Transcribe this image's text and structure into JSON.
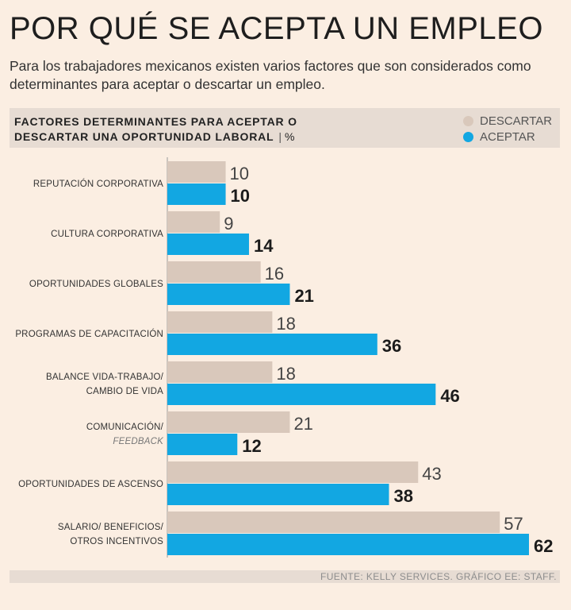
{
  "title": "POR QUÉ SE ACEPTA UN EMPLEO",
  "subtitle": "Para los trabajadores mexicanos existen varios factores que son considerados como determinantes para aceptar o descartar un empleo.",
  "header": {
    "line1": "FACTORES DETERMINANTES PARA ACEPTAR O",
    "line2": "DESCARTAR UNA OPORTUNIDAD LABORAL",
    "unit": "%"
  },
  "footer": "FUENTE: KELLY SERVICES.  GRÁFICO EE: STAFF.",
  "colors": {
    "descartar": "#d9c8bb",
    "aceptar": "#12a7e2",
    "background": "#fbeee2"
  },
  "chart_data": {
    "type": "bar",
    "orientation": "horizontal",
    "categories": [
      [
        "REPUTACIÓN CORPORATIVA"
      ],
      [
        "CULTURA CORPORATIVA"
      ],
      [
        "OPORTUNIDADES GLOBALES"
      ],
      [
        "PROGRAMAS DE CAPACITACIÓN"
      ],
      [
        "BALANCE VIDA-TRABAJO/",
        "CAMBIO DE VIDA"
      ],
      [
        "COMUNICACIÓN/",
        "FEEDBACK"
      ],
      [
        "OPORTUNIDADES DE ASCENSO"
      ],
      [
        "SALARIO/ BENEFICIOS/",
        "OTROS INCENTIVOS"
      ]
    ],
    "series": [
      {
        "name": "DESCARTAR",
        "values": [
          10,
          9,
          16,
          18,
          18,
          21,
          43,
          57
        ]
      },
      {
        "name": "ACEPTAR",
        "values": [
          10,
          14,
          21,
          36,
          46,
          12,
          38,
          62
        ]
      }
    ],
    "xlim": [
      0,
      62
    ],
    "legend": "top-right",
    "grid": false
  }
}
